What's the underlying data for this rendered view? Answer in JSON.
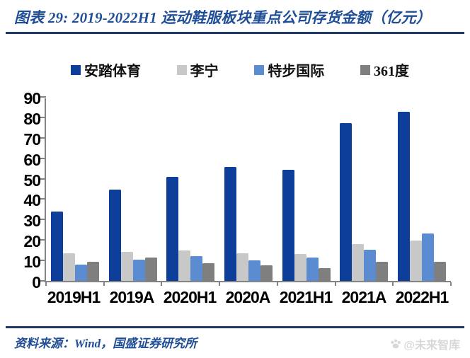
{
  "page": {
    "title": "图表 29:  2019-2022H1 运动鞋服板块重点公司存货金额（亿元）",
    "source_note": "资料来源：Wind，国盛证券研究所",
    "watermark": "@未来智库"
  },
  "colors": {
    "title_blue": "#1f4e96",
    "rule_navy": "#1f3864",
    "axis_gray": "#848484",
    "watermark_gray": "#d8d8d8"
  },
  "icons": {
    "watermark_icon": "paw-icon"
  },
  "chart_data": {
    "type": "bar",
    "title": "2019-2022H1 运动鞋服板块重点公司存货金额（亿元）",
    "ylabel": "存货金额（亿元）",
    "xlabel": "",
    "categories": [
      "2019H1",
      "2019A",
      "2020H1",
      "2020A",
      "2021H1",
      "2021A",
      "2022H1"
    ],
    "series": [
      {
        "name": "安踏体育",
        "color": "#0d3f9a",
        "values": [
          33.9,
          44.8,
          50.8,
          55.6,
          54.4,
          77.2,
          82.7
        ]
      },
      {
        "name": "李宁",
        "color": "#c8c8c8",
        "values": [
          13.6,
          14.1,
          14.9,
          13.6,
          13.3,
          17.9,
          19.8
        ]
      },
      {
        "name": "特步国际",
        "color": "#5b8bd0",
        "values": [
          8.0,
          10.3,
          12.0,
          10.0,
          11.3,
          15.3,
          23.1
        ]
      },
      {
        "name": "361度",
        "color": "#7f7f7f",
        "values": [
          9.3,
          11.5,
          8.7,
          7.7,
          6.4,
          9.2,
          9.3
        ]
      }
    ],
    "ylim": [
      0,
      90
    ],
    "ytick_step": 10,
    "grid": false,
    "legend_position": "top"
  }
}
